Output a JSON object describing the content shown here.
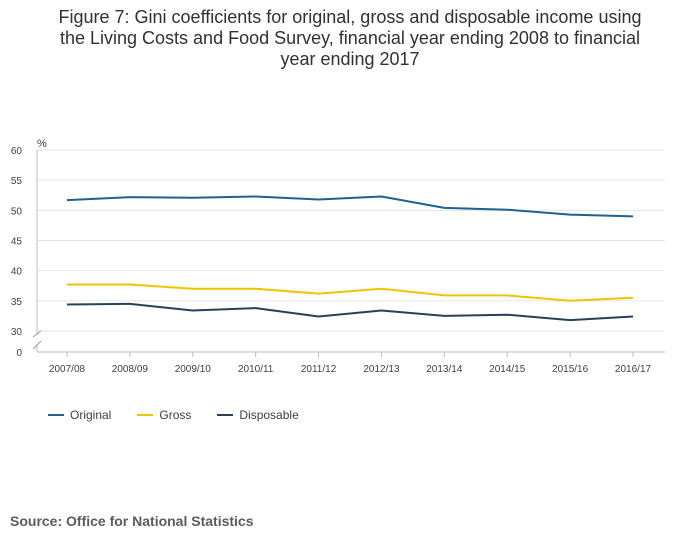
{
  "title_lines": [
    "Figure 7: Gini coefficients for original, gross and disposable income using",
    "the Living Costs and Food Survey, financial year ending 2008 to financial",
    "year ending 2017"
  ],
  "source": "Source: Office for National Statistics",
  "chart_data": {
    "type": "line",
    "title": "Figure 7: Gini coefficients for original, gross and disposable income using the Living Costs and Food Survey, financial year ending 2008 to financial year ending 2017",
    "xlabel": "",
    "ylabel": "%",
    "categories": [
      "2007/08",
      "2008/09",
      "2009/10",
      "2010/11",
      "2011/12",
      "2012/13",
      "2013/14",
      "2014/15",
      "2015/16",
      "2016/17"
    ],
    "y_ticks": [
      60,
      55,
      50,
      45,
      40,
      35,
      30,
      0
    ],
    "ylim": [
      30,
      60
    ],
    "axis_break": true,
    "grid": true,
    "legend_position": "bottom-left",
    "series": [
      {
        "name": "Original",
        "color": "#206095",
        "values": [
          51.7,
          52.2,
          52.1,
          52.3,
          51.8,
          52.3,
          50.4,
          50.1,
          49.3,
          49.0
        ]
      },
      {
        "name": "Gross",
        "color": "#f0c400",
        "values": [
          37.7,
          37.7,
          37.0,
          37.0,
          36.2,
          37.0,
          35.9,
          35.9,
          35.0,
          35.5
        ]
      },
      {
        "name": "Disposable",
        "color": "#27415b",
        "values": [
          34.4,
          34.5,
          33.4,
          33.8,
          32.4,
          33.4,
          32.5,
          32.7,
          31.8,
          32.4
        ]
      }
    ]
  }
}
